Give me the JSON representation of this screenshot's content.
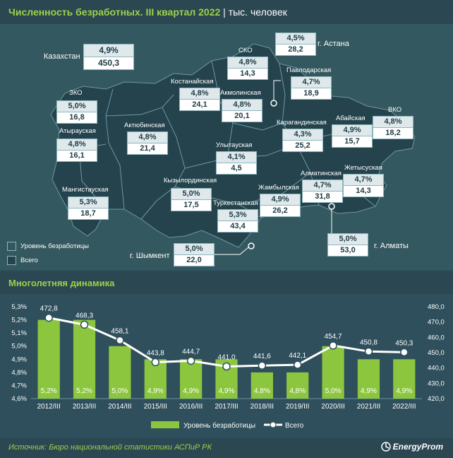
{
  "header": {
    "title": "Численность безработных. III квартал 2022",
    "unit": "| тыс. человек"
  },
  "map": {
    "country": {
      "name": "Казахстан",
      "rate": "4,9%",
      "total": "450,3"
    },
    "regions": [
      {
        "id": "zko",
        "name": "ЗКО",
        "rate": "5,0%",
        "total": "16,8"
      },
      {
        "id": "atyrau",
        "name": "Атырауская",
        "rate": "4,8%",
        "total": "16,1"
      },
      {
        "id": "mangistau",
        "name": "Мангистауская",
        "rate": "5,3%",
        "total": "18,7"
      },
      {
        "id": "aktobe",
        "name": "Актюбинская",
        "rate": "4,8%",
        "total": "21,4"
      },
      {
        "id": "kostanay",
        "name": "Костанайская",
        "rate": "4,8%",
        "total": "24,1"
      },
      {
        "id": "akmola",
        "name": "Акмолинская",
        "rate": "4,8%",
        "total": "20,1"
      },
      {
        "id": "sko",
        "name": "СКО",
        "rate": "4,8%",
        "total": "14,3"
      },
      {
        "id": "astana",
        "name": "г. Астана",
        "rate": "4,5%",
        "total": "28,2"
      },
      {
        "id": "pavlodar",
        "name": "Павлодарская",
        "rate": "4,7%",
        "total": "18,9"
      },
      {
        "id": "abay",
        "name": "Абайская",
        "rate": "4,9%",
        "total": "15,7"
      },
      {
        "id": "vko",
        "name": "ВКО",
        "rate": "4,8%",
        "total": "18,2"
      },
      {
        "id": "karaganda",
        "name": "Карагандинская",
        "rate": "4,3%",
        "total": "25,2"
      },
      {
        "id": "ulytau",
        "name": "Улытауская",
        "rate": "4,1%",
        "total": "4,5"
      },
      {
        "id": "kyzylorda",
        "name": "Кызылординская",
        "rate": "5,0%",
        "total": "17,5"
      },
      {
        "id": "turkestan",
        "name": "Туркестанская",
        "rate": "5,3%",
        "total": "43,4"
      },
      {
        "id": "zhambyl",
        "name": "Жамбылская",
        "rate": "4,9%",
        "total": "26,2"
      },
      {
        "id": "almaty_obl",
        "name": "Алматинская",
        "rate": "4,7%",
        "total": "31,8"
      },
      {
        "id": "zhetysu",
        "name": "Жетысуская",
        "rate": "4,7%",
        "total": "14,3"
      },
      {
        "id": "shymkent",
        "name": "г. Шымкент",
        "rate": "5,0%",
        "total": "22,0"
      },
      {
        "id": "almaty",
        "name": "г. Алматы",
        "rate": "5,0%",
        "total": "53,0"
      }
    ],
    "legend": {
      "rate": "Уровень безработицы",
      "total": "Всего"
    }
  },
  "section": {
    "title": "Многолетняя динамика"
  },
  "chart_data": {
    "type": "bar+line",
    "categories": [
      "2012/III",
      "2013/III",
      "2014/III",
      "2015/III",
      "2016/III",
      "2017/III",
      "2018/III",
      "2019/III",
      "2020/III",
      "2021/III",
      "2022/III"
    ],
    "series": [
      {
        "name": "Уровень безработицы",
        "type": "bar",
        "axis": "left",
        "values": [
          5.2,
          5.2,
          5.0,
          4.9,
          4.9,
          4.9,
          4.8,
          4.8,
          5.0,
          4.9,
          4.9
        ],
        "labels": [
          "5,2%",
          "5,2%",
          "5,0%",
          "4,9%",
          "4,9%",
          "4,9%",
          "4,8%",
          "4,8%",
          "5,0%",
          "4,9%",
          "4,9%"
        ]
      },
      {
        "name": "Всего",
        "type": "line",
        "axis": "right",
        "values": [
          472.8,
          468.3,
          458.1,
          443.8,
          444.7,
          441.0,
          441.6,
          442.1,
          454.7,
          450.8,
          450.3
        ],
        "labels": [
          "472,8",
          "468,3",
          "458,1",
          "443,8",
          "444,7",
          "441,0",
          "441,6",
          "442,1",
          "454,7",
          "450,8",
          "450,3"
        ]
      }
    ],
    "left_axis": {
      "min": 4.6,
      "max": 5.3,
      "ticks": [
        "4,6%",
        "4,7%",
        "4,8%",
        "4,9%",
        "5,0%",
        "5,1%",
        "5,2%",
        "5,3%"
      ]
    },
    "right_axis": {
      "min": 420,
      "max": 480,
      "ticks": [
        "420,0",
        "430,0",
        "440,0",
        "450,0",
        "460,0",
        "470,0",
        "480,0"
      ]
    },
    "legend_position": "bottom",
    "colors": {
      "bar": "#8cc63f",
      "line": "#ffffff"
    }
  },
  "footer": {
    "source": "Источник: Бюро национальной статистики АСПиР РК",
    "brand": "EnergyProm"
  }
}
